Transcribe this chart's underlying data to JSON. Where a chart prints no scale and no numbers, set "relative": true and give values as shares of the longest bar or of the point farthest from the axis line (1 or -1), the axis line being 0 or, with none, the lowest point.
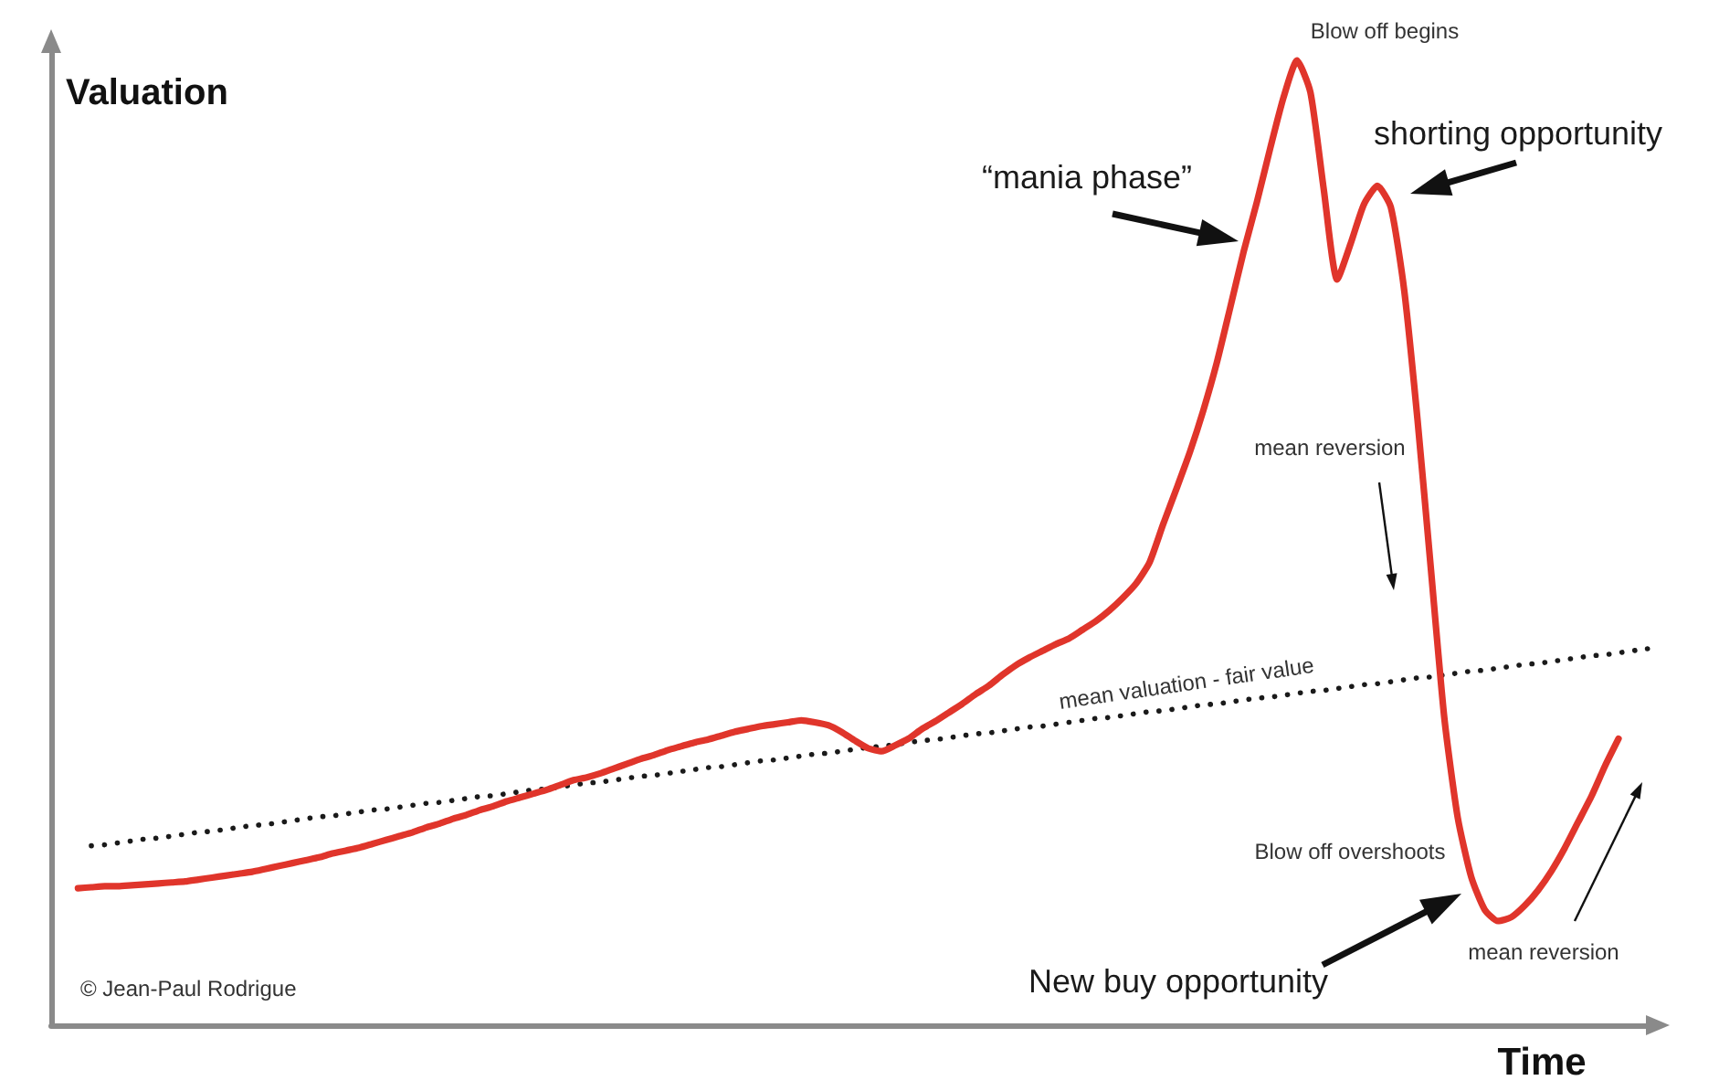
{
  "chart_data": {
    "type": "line",
    "relative": true,
    "xlabel": "Time",
    "ylabel": "Valuation",
    "marker": "none",
    "categories": [
      null,
      null,
      null,
      null,
      null,
      null,
      null,
      null,
      null,
      null,
      null,
      null,
      null,
      null,
      null,
      null,
      null,
      null,
      null,
      null,
      null,
      null,
      null,
      null,
      null,
      null,
      null,
      null,
      null,
      null,
      null,
      null,
      null,
      null,
      null,
      null,
      null,
      null,
      null,
      null,
      null,
      null,
      null,
      null,
      null,
      null,
      null,
      null,
      null,
      null,
      null,
      null,
      null,
      null,
      null,
      null,
      null,
      null,
      null,
      null,
      null,
      null,
      null,
      null,
      null,
      null,
      null,
      null,
      null,
      null,
      null,
      null,
      null,
      null,
      null,
      null,
      null,
      null,
      null,
      null,
      null,
      null,
      null,
      null,
      null,
      null,
      null,
      null,
      null,
      null,
      null,
      null,
      null,
      null,
      null,
      null,
      null,
      null,
      null,
      null,
      null,
      null,
      null,
      null,
      null,
      null,
      null,
      null,
      null,
      null,
      null,
      null,
      null,
      null,
      null,
      null,
      null,
      null,
      null,
      null,
      null
    ],
    "series": [
      {
        "color": "#e0352b",
        "line_style": "solid",
        "values": [
          null,
          null,
          0.142,
          0.143,
          0.144,
          0.144,
          0.145,
          0.146,
          0.147,
          0.148,
          0.149,
          0.151,
          0.153,
          0.155,
          0.157,
          0.159,
          0.162,
          0.165,
          0.168,
          0.171,
          0.174,
          0.178,
          0.181,
          0.184,
          0.188,
          0.192,
          0.196,
          0.2,
          0.205,
          0.209,
          0.214,
          0.218,
          0.223,
          0.227,
          0.232,
          0.236,
          0.24,
          0.244,
          0.249,
          0.254,
          0.257,
          0.261,
          0.266,
          0.271,
          0.276,
          0.28,
          0.285,
          0.289,
          0.293,
          0.296,
          0.3,
          0.304,
          0.307,
          0.31,
          0.312,
          0.314,
          0.316,
          0.314,
          0.311,
          0.304,
          0.295,
          0.287,
          0.284,
          0.29,
          0.297,
          0.307,
          0.315,
          0.324,
          0.333,
          0.343,
          0.352,
          0.363,
          0.373,
          0.381,
          0.388,
          0.395,
          0.401,
          0.41,
          0.419,
          0.43,
          0.443,
          0.458,
          0.48,
          0.519,
          0.556,
          0.594,
          0.637,
          0.686,
          0.743,
          0.801,
          0.853,
          0.909,
          0.962,
          1.0,
          0.967,
          0.866,
          0.773,
          0.81,
          0.851,
          0.87,
          0.848,
          0.762,
          0.627,
          0.472,
          0.318,
          0.215,
          0.154,
          0.12,
          0.108,
          0.112,
          0.124,
          0.14,
          0.16,
          0.184,
          0.211,
          0.238,
          0.269,
          0.297,
          null,
          null,
          null
        ]
      },
      {
        "name": "mean valuation - fair value",
        "color": "#1a1a1a",
        "line_style": "dotted",
        "values": [
          null,
          null,
          null,
          0.186,
          0.187,
          0.189,
          0.191,
          0.193,
          0.194,
          0.196,
          0.198,
          0.2,
          0.201,
          0.203,
          0.205,
          0.207,
          0.208,
          0.21,
          0.212,
          0.214,
          0.216,
          0.217,
          0.219,
          0.221,
          0.223,
          0.224,
          0.226,
          0.228,
          0.23,
          0.231,
          0.233,
          0.235,
          0.237,
          0.238,
          0.24,
          0.242,
          0.244,
          0.245,
          0.247,
          0.249,
          0.251,
          0.252,
          0.254,
          0.256,
          0.258,
          0.259,
          0.261,
          0.263,
          0.265,
          0.267,
          0.268,
          0.27,
          0.272,
          0.274,
          0.275,
          0.277,
          0.279,
          0.281,
          0.282,
          0.284,
          0.286,
          0.288,
          0.289,
          0.291,
          0.293,
          0.295,
          0.296,
          0.298,
          0.3,
          0.302,
          0.303,
          0.305,
          0.307,
          0.309,
          0.31,
          0.312,
          0.314,
          0.316,
          0.318,
          0.319,
          0.321,
          0.323,
          0.325,
          0.326,
          0.328,
          0.33,
          0.332,
          0.333,
          0.335,
          0.337,
          0.339,
          0.34,
          0.342,
          0.344,
          0.346,
          0.347,
          0.349,
          0.351,
          0.353,
          0.354,
          0.356,
          0.358,
          0.36,
          0.361,
          0.363,
          0.365,
          0.367,
          0.368,
          0.37,
          0.372,
          0.374,
          0.375,
          0.377,
          0.379,
          0.381,
          0.383,
          0.384,
          0.386,
          0.388,
          0.39,
          0.391
        ]
      }
    ],
    "annotations": [
      "Blow off begins",
      "shorting opportunity",
      "“mania phase”",
      "mean reversion",
      "Blow off overshoots",
      "New buy opportunity",
      "mean reversion",
      "© Jean-Paul Rodrigue"
    ]
  }
}
